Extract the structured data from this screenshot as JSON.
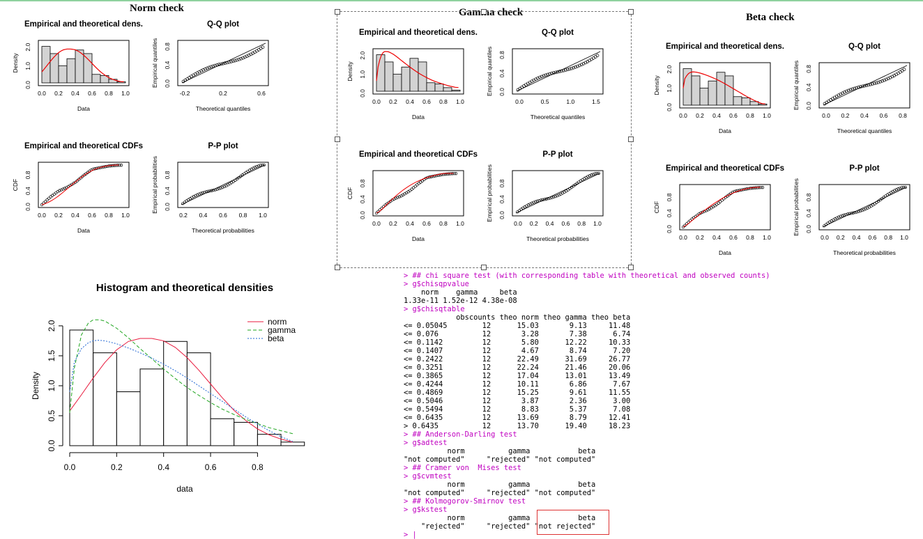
{
  "panels": [
    {
      "title": "Norm check",
      "fit": "norm",
      "hist_title": "Empirical and theoretical dens.",
      "qq_title": "Q-Q plot",
      "cdf_title": "Empirical and theoretical CDFs",
      "pp_title": "P-P plot",
      "data_label": "Data",
      "density_label": "Density",
      "cdf_label": "CDF",
      "theo_q_label": "Theoretical quantiles",
      "emp_q_label": "Empirical quantiles",
      "theo_p_label": "Theoretical probabilities",
      "emp_p_label": "Empirical probabilities",
      "qq_xticks": [
        "-0.2",
        "0.2",
        "0.6"
      ],
      "pp_xticks": [
        "0.2",
        "0.4",
        "0.6",
        "0.8",
        "1.0"
      ]
    },
    {
      "title": "Gamma check",
      "fit": "gamma",
      "hist_title": "Empirical and theoretical dens.",
      "qq_title": "Q-Q plot",
      "cdf_title": "Empirical and theoretical CDFs",
      "pp_title": "P-P plot",
      "data_label": "Data",
      "density_label": "Density",
      "cdf_label": "CDF",
      "theo_q_label": "Theoretical quantiles",
      "emp_q_label": "Empirical quantiles",
      "theo_p_label": "Theoretical probabilities",
      "emp_p_label": "Empirical probabilities",
      "qq_xticks": [
        "0.0",
        "0.5",
        "1.0",
        "1.5"
      ],
      "pp_xticks": [
        "0.0",
        "0.2",
        "0.4",
        "0.6",
        "0.8",
        "1.0"
      ]
    },
    {
      "title": "Beta check",
      "fit": "beta",
      "hist_title": "Empirical and theoretical dens.",
      "qq_title": "Q-Q plot",
      "cdf_title": "Empirical and theoretical CDFs",
      "pp_title": "P-P plot",
      "data_label": "Data",
      "density_label": "Density",
      "cdf_label": "CDF",
      "theo_q_label": "Theoretical quantiles",
      "emp_q_label": "Empirical quantiles",
      "theo_p_label": "Theoretical probabilities",
      "emp_p_label": "Empirical probabilities",
      "qq_xticks": [
        "0.0",
        "0.2",
        "0.4",
        "0.6",
        "0.8"
      ],
      "pp_xticks": [
        "0.0",
        "0.2",
        "0.4",
        "0.6",
        "0.8",
        "1.0"
      ]
    }
  ],
  "small_axis": {
    "data_xticks": [
      "0.0",
      "0.2",
      "0.4",
      "0.6",
      "0.8",
      "1.0"
    ],
    "dens_yticks": [
      "0.0",
      "1.0",
      "2.0"
    ],
    "unit_yticks": [
      "0.0",
      "0.4",
      "0.8"
    ]
  },
  "chart_data": [
    {
      "type": "bar",
      "title": "Empirical and theoretical dens.",
      "xlabel": "Data",
      "ylabel": "Density",
      "bin_edges": [
        0,
        0.1,
        0.2,
        0.3,
        0.4,
        0.5,
        0.6,
        0.7,
        0.8,
        0.9,
        1.0
      ],
      "density": [
        1.93,
        1.55,
        0.9,
        1.28,
        1.74,
        1.55,
        0.45,
        0.39,
        0.19,
        0.06
      ],
      "xlim": [
        0,
        1
      ],
      "ylim": [
        0,
        2.1
      ]
    },
    {
      "type": "line",
      "title": "Histogram and theoretical densities",
      "xlabel": "data",
      "ylabel": "Density",
      "xlim": [
        0,
        0.98
      ],
      "ylim": [
        0,
        2.15
      ],
      "xticks": [
        "0.0",
        "0.2",
        "0.4",
        "0.6",
        "0.8"
      ],
      "yticks": [
        "0.0",
        "0.5",
        "1.0",
        "1.5",
        "2.0"
      ],
      "bin_edges": [
        0,
        0.1,
        0.2,
        0.3,
        0.4,
        0.5,
        0.6,
        0.7,
        0.8,
        0.9,
        1.0
      ],
      "density": [
        1.93,
        1.55,
        0.9,
        1.28,
        1.74,
        1.55,
        0.45,
        0.39,
        0.19,
        0.06
      ],
      "series": [
        {
          "name": "norm",
          "color": "#e8193c",
          "dash": "",
          "x": [
            0,
            0.05,
            0.1,
            0.15,
            0.2,
            0.25,
            0.3,
            0.35,
            0.4,
            0.45,
            0.5,
            0.55,
            0.6,
            0.65,
            0.7,
            0.75,
            0.8,
            0.85,
            0.9,
            0.95
          ],
          "y": [
            0.58,
            0.85,
            1.13,
            1.39,
            1.6,
            1.74,
            1.79,
            1.79,
            1.75,
            1.64,
            1.47,
            1.26,
            1.03,
            0.8,
            0.59,
            0.42,
            0.28,
            0.18,
            0.11,
            0.06
          ]
        },
        {
          "name": "gamma",
          "color": "#1fa51f",
          "dash": "5,3",
          "x": [
            0,
            0.02,
            0.05,
            0.08,
            0.1,
            0.13,
            0.15,
            0.2,
            0.25,
            0.3,
            0.35,
            0.4,
            0.45,
            0.5,
            0.55,
            0.6,
            0.65,
            0.7,
            0.75,
            0.8,
            0.85,
            0.9,
            0.95
          ],
          "y": [
            0.55,
            1.3,
            1.85,
            2.05,
            2.1,
            2.1,
            2.08,
            1.96,
            1.8,
            1.62,
            1.45,
            1.28,
            1.12,
            0.97,
            0.84,
            0.72,
            0.61,
            0.52,
            0.44,
            0.37,
            0.3,
            0.25,
            0.2
          ]
        },
        {
          "name": "beta",
          "color": "#1e64d2",
          "dash": "2,2",
          "x": [
            0,
            0.02,
            0.05,
            0.08,
            0.1,
            0.12,
            0.15,
            0.2,
            0.25,
            0.3,
            0.35,
            0.4,
            0.45,
            0.5,
            0.55,
            0.6,
            0.65,
            0.7,
            0.75,
            0.8,
            0.85,
            0.9,
            0.95
          ],
          "y": [
            0.9,
            1.4,
            1.62,
            1.72,
            1.75,
            1.76,
            1.75,
            1.7,
            1.63,
            1.55,
            1.46,
            1.36,
            1.25,
            1.13,
            1.0,
            0.87,
            0.74,
            0.61,
            0.48,
            0.36,
            0.25,
            0.15,
            0.07
          ]
        }
      ]
    }
  ],
  "console": {
    "lines": [
      {
        "t": "> ## chi square test (with corresponding table with theoretical and observed counts)",
        "c": "cmd"
      },
      {
        "t": "> g$chisqpvalue",
        "c": "cmd"
      },
      {
        "t": "    norm    gamma     beta ",
        "c": "out"
      },
      {
        "t": "1.33e-11 1.52e-12 4.38e-08 ",
        "c": "out"
      },
      {
        "t": "> g$chisqtable",
        "c": "cmd"
      },
      {
        "t": "            obscounts theo norm theo gamma theo beta",
        "c": "out"
      },
      {
        "t": "<= 0.05045        12      15.03       9.13     11.48",
        "c": "out"
      },
      {
        "t": "<= 0.076          12       3.28       7.38      6.74",
        "c": "out"
      },
      {
        "t": "<= 0.1142         12       5.80      12.22     10.33",
        "c": "out"
      },
      {
        "t": "<= 0.1407         12       4.67       8.74      7.20",
        "c": "out"
      },
      {
        "t": "<= 0.2422         12      22.49      31.69     26.77",
        "c": "out"
      },
      {
        "t": "<= 0.3251         12      22.24      21.46     20.06",
        "c": "out"
      },
      {
        "t": "<= 0.3865         12      17.04      13.01     13.49",
        "c": "out"
      },
      {
        "t": "<= 0.4244         12      10.11       6.86      7.67",
        "c": "out"
      },
      {
        "t": "<= 0.4869         12      15.25       9.61     11.55",
        "c": "out"
      },
      {
        "t": "<= 0.5046         12       3.87       2.36      3.00",
        "c": "out"
      },
      {
        "t": "<= 0.5494         12       8.83       5.37      7.08",
        "c": "out"
      },
      {
        "t": "<= 0.6435         12      13.69       8.79     12.41",
        "c": "out"
      },
      {
        "t": "> 0.6435          12      13.70      19.40     18.23",
        "c": "out"
      },
      {
        "t": "> ## Anderson-Darling test",
        "c": "cmd"
      },
      {
        "t": "> g$adtest",
        "c": "cmd"
      },
      {
        "t": "          norm          gamma           beta ",
        "c": "out"
      },
      {
        "t": "\"not computed\"     \"rejected\" \"not computed\" ",
        "c": "out"
      },
      {
        "t": "> ## Cramer von  Mises test",
        "c": "cmd"
      },
      {
        "t": "> g$cvmtest",
        "c": "cmd"
      },
      {
        "t": "          norm          gamma           beta ",
        "c": "out"
      },
      {
        "t": "\"not computed\"     \"rejected\" \"not computed\" ",
        "c": "out"
      },
      {
        "t": "> ## Kolmogorov-Smirnov test",
        "c": "cmd"
      },
      {
        "t": "> g$kstest",
        "c": "cmd"
      },
      {
        "t": "          norm          gamma           beta ",
        "c": "out"
      },
      {
        "t": "    \"rejected\"     \"rejected\" \"not rejected\" ",
        "c": "out"
      },
      {
        "t": "> |",
        "c": "cmd"
      }
    ]
  }
}
